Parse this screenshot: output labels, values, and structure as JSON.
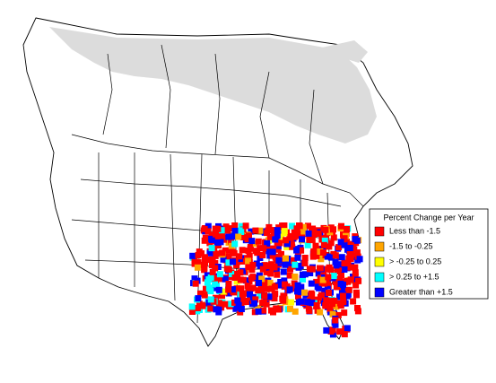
{
  "legend": {
    "title": "Percent Change per Year",
    "items": [
      {
        "label": "Less than -1.5",
        "color": "#ff0000"
      },
      {
        "label": "-1.5 to -0.25",
        "color": "#ffa500"
      },
      {
        "label": "> -0.25 to 0.25",
        "color": "#ffff00"
      },
      {
        "label": "> 0.25 to +1.5",
        "color": "#00ffff"
      },
      {
        "label": "Greater than +1.5",
        "color": "#0000ff"
      }
    ]
  }
}
